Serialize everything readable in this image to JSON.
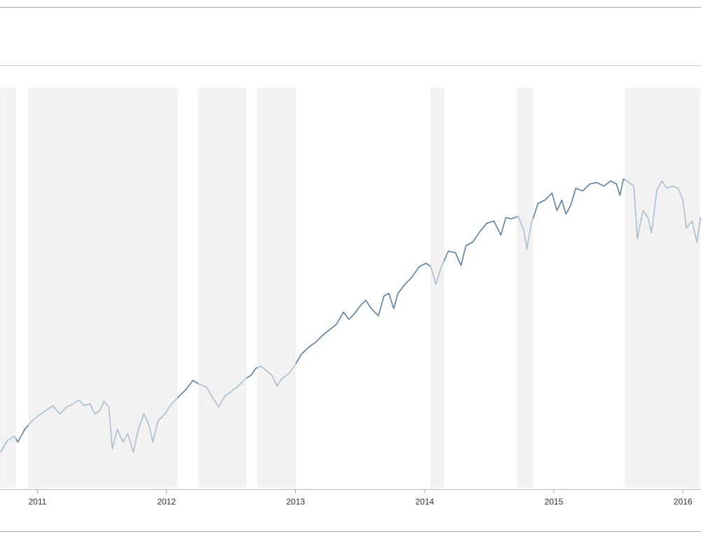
{
  "chart_data": {
    "type": "line",
    "x": [
      2010.713,
      2010.767,
      2010.821,
      2010.848,
      2010.902,
      2010.957,
      2011.011,
      2011.065,
      2011.119,
      2011.174,
      2011.228,
      2011.282,
      2011.32,
      2011.363,
      2011.407,
      2011.445,
      2011.483,
      2011.515,
      2011.553,
      2011.58,
      2011.618,
      2011.662,
      2011.7,
      2011.743,
      2011.781,
      2011.824,
      2011.862,
      2011.895,
      2011.933,
      2011.987,
      2012.041,
      2012.095,
      2012.15,
      2012.204,
      2012.258,
      2012.312,
      2012.367,
      2012.405,
      2012.448,
      2012.502,
      2012.556,
      2012.611,
      2012.654,
      2012.692,
      2012.73,
      2012.773,
      2012.817,
      2012.855,
      2012.893,
      2012.947,
      2012.99,
      2013.044,
      2013.099,
      2013.153,
      2013.207,
      2013.261,
      2013.316,
      2013.37,
      2013.413,
      2013.451,
      2013.505,
      2013.543,
      2013.587,
      2013.641,
      2013.684,
      2013.722,
      2013.76,
      2013.793,
      2013.847,
      2013.901,
      2013.956,
      2014.01,
      2014.048,
      2014.086,
      2014.129,
      2014.183,
      2014.238,
      2014.281,
      2014.319,
      2014.373,
      2014.427,
      2014.482,
      2014.536,
      2014.59,
      2014.628,
      2014.671,
      2014.725,
      2014.769,
      2014.791,
      2014.823,
      2014.877,
      2014.932,
      2014.986,
      2015.024,
      2015.062,
      2015.094,
      2015.132,
      2015.17,
      2015.224,
      2015.279,
      2015.333,
      2015.387,
      2015.441,
      2015.485,
      2015.512,
      2015.539,
      2015.582,
      2015.62,
      2015.647,
      2015.691,
      2015.729,
      2015.756,
      2015.799,
      2015.837,
      2015.875,
      2015.919,
      2015.962,
      2016.0,
      2016.027,
      2016.071,
      2016.109,
      2016.136
    ],
    "values": [
      1114,
      1158,
      1174,
      1153,
      1200,
      1231,
      1252,
      1270,
      1288,
      1257,
      1283,
      1296,
      1309,
      1288,
      1296,
      1257,
      1270,
      1304,
      1283,
      1127,
      1200,
      1153,
      1184,
      1114,
      1200,
      1257,
      1218,
      1153,
      1231,
      1257,
      1296,
      1322,
      1348,
      1382,
      1367,
      1356,
      1309,
      1283,
      1322,
      1341,
      1361,
      1388,
      1401,
      1427,
      1435,
      1419,
      1401,
      1361,
      1388,
      1408,
      1435,
      1479,
      1505,
      1523,
      1549,
      1570,
      1591,
      1636,
      1609,
      1628,
      1662,
      1680,
      1649,
      1622,
      1696,
      1706,
      1649,
      1706,
      1740,
      1766,
      1805,
      1818,
      1805,
      1740,
      1805,
      1863,
      1857,
      1810,
      1883,
      1897,
      1936,
      1967,
      1975,
      1923,
      1988,
      1983,
      1993,
      1936,
      1870,
      1962,
      2040,
      2053,
      2079,
      2014,
      2053,
      2001,
      2035,
      2097,
      2087,
      2113,
      2118,
      2105,
      2124,
      2113,
      2071,
      2131,
      2118,
      2105,
      1910,
      2014,
      1988,
      1930,
      2092,
      2124,
      2097,
      2105,
      2097,
      2053,
      1949,
      1975,
      1896,
      1988
    ],
    "color": "#5b7f9e",
    "shaded_color": "#a9bfcf",
    "shade_fill": "#f2f2f2",
    "shaded_ranges": [
      [
        2010.712,
        2010.832
      ],
      [
        2010.929,
        2012.085
      ],
      [
        2012.247,
        2012.621
      ],
      [
        2012.703,
        2013.001
      ],
      [
        2014.042,
        2014.151
      ],
      [
        2014.715,
        2014.84
      ],
      [
        2015.55,
        2016.136
      ]
    ],
    "xlim": [
      2010.71,
      2016.14
    ],
    "xticks": [
      2011,
      2012,
      2013,
      2014,
      2015,
      2016
    ],
    "ylim": [
      983,
      2471
    ]
  }
}
